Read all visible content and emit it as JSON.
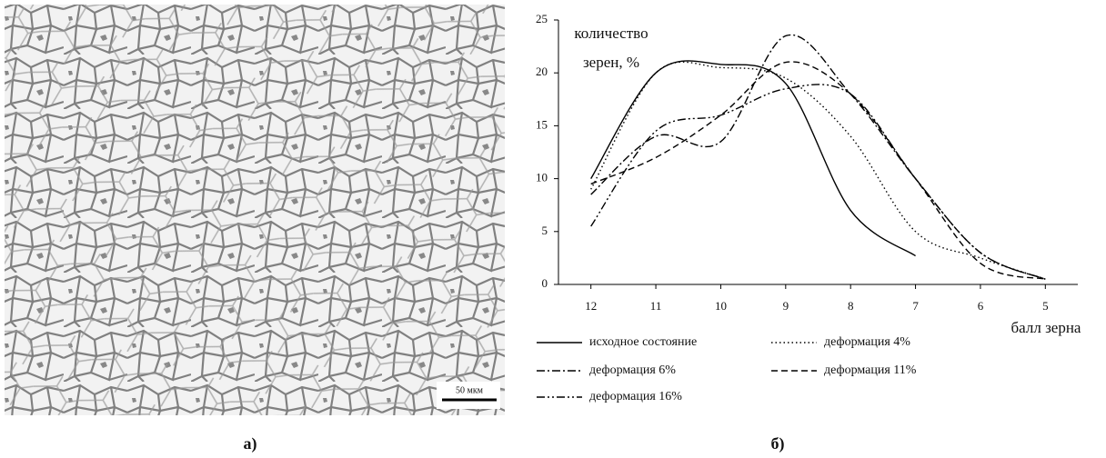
{
  "figure": {
    "caption_left": "а)",
    "caption_right": "б)",
    "scale_bar": "50 мкм"
  },
  "chart_data": {
    "type": "line",
    "ylabel": [
      "количество",
      "зерен, %"
    ],
    "xlabel": "балл зерна",
    "x": [
      12,
      11,
      10,
      9,
      8,
      7,
      6,
      5
    ],
    "xlim": [
      12.5,
      4.5
    ],
    "xticks": [
      12,
      11,
      10,
      9,
      8,
      7,
      6,
      5
    ],
    "ylim": [
      0,
      25
    ],
    "yticks": [
      0,
      5,
      10,
      15,
      20,
      25
    ],
    "series": [
      {
        "name": "исходное состояние",
        "color": "#000000",
        "line_style": "solid",
        "values": [
          10,
          20,
          20.8,
          19,
          7,
          2.7,
          null,
          null
        ]
      },
      {
        "name": "деформация 4%",
        "color": "#000000",
        "line_style": "dotted",
        "values": [
          9,
          20,
          20.5,
          19.5,
          14,
          5,
          2.5,
          0.5
        ]
      },
      {
        "name": "деформация 6%",
        "color": "#000000",
        "line_style": "dashdot",
        "values": [
          8.5,
          14,
          13.5,
          23.5,
          18,
          10,
          3,
          0.5
        ]
      },
      {
        "name": "деформация 11%",
        "color": "#000000",
        "line_style": "dashed",
        "values": [
          9.5,
          12,
          16,
          21,
          18,
          10,
          2,
          0.5
        ]
      },
      {
        "name": "деформация 16%",
        "color": "#000000",
        "line_style": "dashdotdot",
        "values": [
          5.5,
          14.5,
          16,
          18.5,
          18,
          10,
          3,
          0.5
        ]
      }
    ]
  }
}
